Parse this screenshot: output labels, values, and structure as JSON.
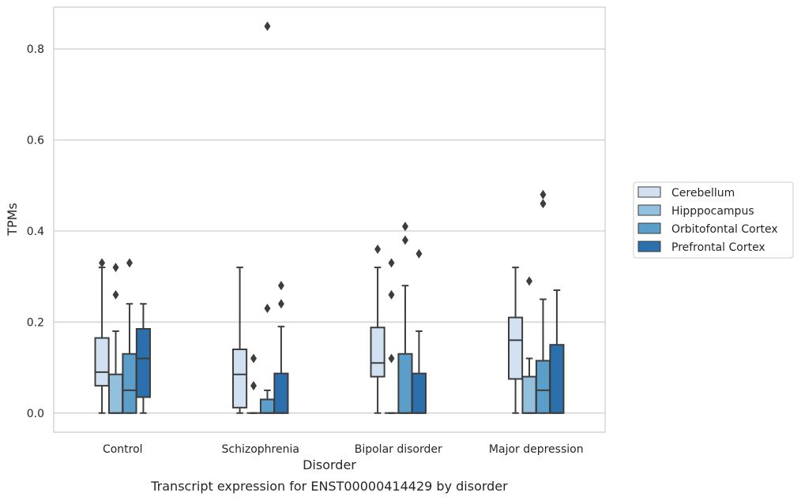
{
  "chart_data": {
    "type": "boxplot",
    "title": "",
    "caption": "Transcript expression for ENST00000414429 by disorder",
    "xlabel": "Disorder",
    "ylabel": "TPMs",
    "ylim": [
      -0.042,
      0.892
    ],
    "yticks": [
      0.0,
      0.2,
      0.4,
      0.6,
      0.8
    ],
    "ytick_labels": [
      "0.0",
      "0.2",
      "0.4",
      "0.6",
      "0.8"
    ],
    "grid": true,
    "legend_position": "center-right outside",
    "categories": [
      "Control",
      "Schizophrenia",
      "Bipolar disorder",
      "Major depression"
    ],
    "series": [
      {
        "name": "Cerebellum",
        "color": "#d1e1f1",
        "boxes": [
          {
            "min": 0.0,
            "q1": 0.06,
            "median": 0.09,
            "q3": 0.165,
            "max": 0.32,
            "outliers": [
              0.33
            ]
          },
          {
            "min": 0.0,
            "q1": 0.012,
            "median": 0.085,
            "q3": 0.14,
            "max": 0.32,
            "outliers": []
          },
          {
            "min": 0.0,
            "q1": 0.08,
            "median": 0.11,
            "q3": 0.188,
            "max": 0.32,
            "outliers": [
              0.36
            ]
          },
          {
            "min": 0.0,
            "q1": 0.075,
            "median": 0.16,
            "q3": 0.21,
            "max": 0.32,
            "outliers": []
          }
        ]
      },
      {
        "name": "Hipppocampus",
        "color": "#92c0dd",
        "boxes": [
          {
            "min": 0.0,
            "q1": 0.0,
            "median": 0.0,
            "q3": 0.085,
            "max": 0.18,
            "outliers": [
              0.26,
              0.32
            ]
          },
          {
            "min": 0.0,
            "q1": 0.0,
            "median": 0.0,
            "q3": 0.0,
            "max": 0.0,
            "outliers": [
              0.06,
              0.12
            ]
          },
          {
            "min": 0.0,
            "q1": 0.0,
            "median": 0.0,
            "q3": 0.0,
            "max": 0.0,
            "outliers": [
              0.12,
              0.26,
              0.33
            ]
          },
          {
            "min": 0.0,
            "q1": 0.0,
            "median": 0.0,
            "q3": 0.08,
            "max": 0.12,
            "outliers": [
              0.29
            ]
          }
        ]
      },
      {
        "name": "Orbitofontal Cortex",
        "color": "#5a9ec9",
        "boxes": [
          {
            "min": 0.0,
            "q1": 0.0,
            "median": 0.05,
            "q3": 0.13,
            "max": 0.24,
            "outliers": [
              0.33
            ]
          },
          {
            "min": 0.0,
            "q1": 0.0,
            "median": 0.0,
            "q3": 0.03,
            "max": 0.05,
            "outliers": [
              0.23,
              0.85
            ]
          },
          {
            "min": 0.0,
            "q1": 0.0,
            "median": 0.0,
            "q3": 0.13,
            "max": 0.28,
            "outliers": [
              0.38,
              0.41
            ]
          },
          {
            "min": 0.0,
            "q1": 0.0,
            "median": 0.05,
            "q3": 0.115,
            "max": 0.25,
            "outliers": [
              0.46,
              0.48
            ]
          }
        ]
      },
      {
        "name": "Prefrontal Cortex",
        "color": "#2c6fad",
        "boxes": [
          {
            "min": 0.0,
            "q1": 0.035,
            "median": 0.12,
            "q3": 0.185,
            "max": 0.24,
            "outliers": []
          },
          {
            "min": 0.0,
            "q1": 0.0,
            "median": 0.0,
            "q3": 0.087,
            "max": 0.19,
            "outliers": [
              0.24,
              0.28
            ]
          },
          {
            "min": 0.0,
            "q1": 0.0,
            "median": 0.0,
            "q3": 0.087,
            "max": 0.18,
            "outliers": [
              0.35
            ]
          },
          {
            "min": 0.0,
            "q1": 0.0,
            "median": 0.0,
            "q3": 0.15,
            "max": 0.27,
            "outliers": []
          }
        ]
      }
    ]
  }
}
